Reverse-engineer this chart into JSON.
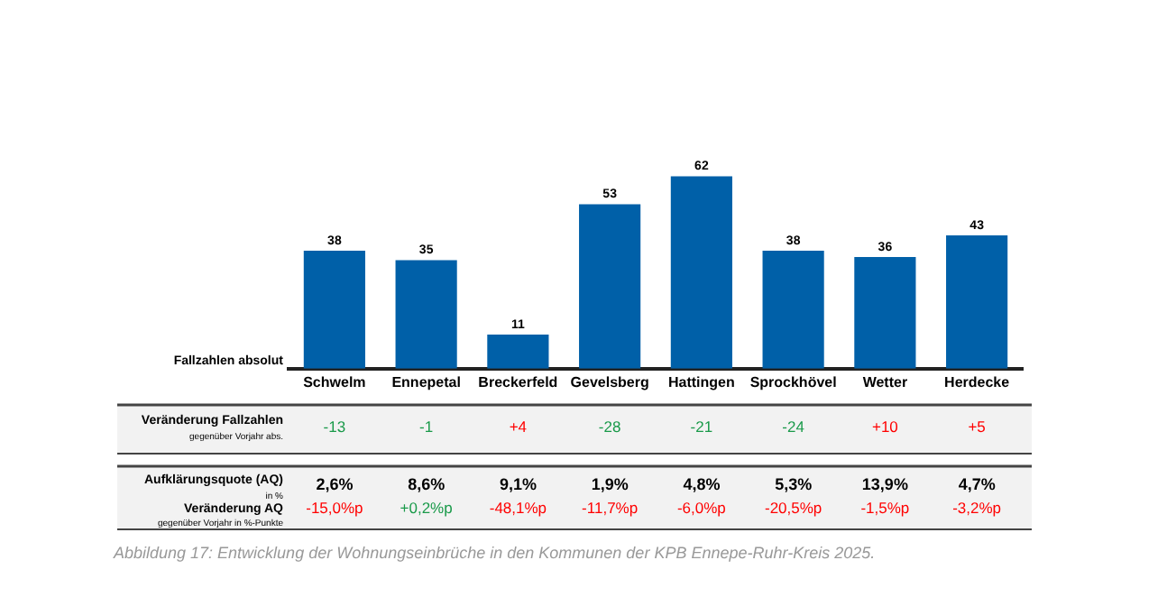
{
  "chart_data": {
    "type": "bar",
    "ylabel": "Fallzahlen absolut",
    "categories": [
      "Schwelm",
      "Ennepetal",
      "Breckerfeld",
      "Gevelsberg",
      "Hattingen",
      "Sprockhövel",
      "Wetter",
      "Herdecke"
    ],
    "values": [
      38,
      35,
      11,
      53,
      62,
      38,
      36,
      43
    ],
    "color": "#0060a8",
    "data_labels": true,
    "grid": false,
    "legend": false,
    "annotations": [
      "Veränderung Fallzahlen",
      "gegenüber Vorjahr abs.",
      "-13",
      "-1",
      "+4",
      "-28",
      "-21",
      "-24",
      "+10",
      "+5",
      "Aufklärungsquote (AQ)",
      "in %",
      "2,6%",
      "8,6%",
      "9,1%",
      "1,9%",
      "4,8%",
      "5,3%",
      "13,9%",
      "4,7%",
      "Veränderung AQ",
      "gegenüber Vorjahr in %-Punkte",
      "-15,0%p",
      "+0,2%p",
      "-48,1%p",
      "-11,7%p",
      "-6,0%p",
      "-20,5%p",
      "-1,5%p",
      "-3,2%p",
      "Abbildung 17: Entwicklung der Wohnungseinbrüche in den Kommunen der KPB Ennepe-Ruhr-Kreis 2025."
    ]
  }
}
